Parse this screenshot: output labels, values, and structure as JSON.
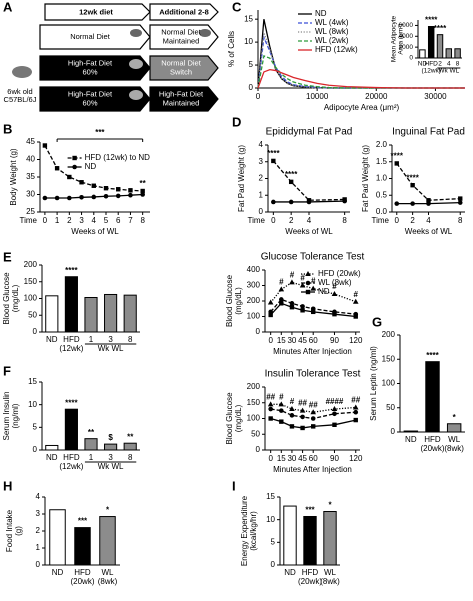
{
  "diagram": {
    "panel": "A",
    "headers": [
      "12wk diet",
      "Additional 2-8"
    ],
    "rows": [
      {
        "left": [
          "Normal Diet"
        ],
        "right": [
          "Normal Diet",
          "Maintained"
        ]
      },
      {
        "left": [
          "High-Fat Diet",
          "60%"
        ],
        "right": [
          "Normal Diet",
          "Switch"
        ]
      },
      {
        "left": [
          "High-Fat Diet",
          "60%"
        ],
        "right": [
          "High-Fat Diet",
          "Maintained"
        ]
      }
    ],
    "mouse_label": [
      "6wk old",
      "C57BL/6J"
    ]
  },
  "chart_data": [
    {
      "type": "line",
      "panel": "B",
      "ylabel": "Body Weight (g)",
      "xlabel": "Weeks of WL",
      "x_start_label": "Time",
      "x": [
        0,
        1,
        2,
        3,
        4,
        5,
        6,
        7,
        8
      ],
      "xlim": [
        -0.4,
        8.6
      ],
      "xticks": [
        0,
        1,
        2,
        3,
        4,
        5,
        6,
        7,
        8
      ],
      "ylim": [
        25,
        45
      ],
      "yticks": [
        25,
        30,
        35,
        40,
        45
      ],
      "legend": "upper-right",
      "bracket_label": "***",
      "series": [
        {
          "name": "HFD (12wk) to ND",
          "color": "#000000",
          "dash": "dashed",
          "marker": "square",
          "values": [
            44,
            37.5,
            35,
            33.5,
            32.5,
            31.8,
            31.5,
            31.2,
            31
          ],
          "significance": [
            null,
            null,
            null,
            null,
            null,
            null,
            null,
            null,
            "**"
          ]
        },
        {
          "name": "ND",
          "color": "#000000",
          "dash": "solid",
          "marker": "circle",
          "values": [
            29,
            29,
            29,
            29.2,
            29.3,
            29.5,
            29.6,
            29.8,
            30
          ]
        }
      ]
    },
    {
      "type": "line",
      "panel": "C",
      "ylabel": "% of Cells",
      "xlabel": "Adipocyte Area (μm²)",
      "x": [
        0,
        1000,
        2000,
        3000,
        4000,
        5000,
        6000,
        8000,
        10000,
        12000,
        15000,
        20000,
        25000,
        30000,
        35000
      ],
      "xlim": [
        0,
        35000
      ],
      "xticks": [
        0,
        10000,
        20000,
        30000
      ],
      "ylim": [
        0,
        17
      ],
      "yticks": [
        0,
        5,
        10,
        15
      ],
      "legend": "upper-left",
      "series": [
        {
          "name": "ND",
          "color": "#000000",
          "dash": "solid",
          "values": [
            0,
            15,
            9,
            4,
            2,
            1,
            0.5,
            0.2,
            0.1,
            0,
            0,
            0,
            0,
            0,
            0
          ]
        },
        {
          "name": "WL (4wk)",
          "color": "#3b4fd6",
          "dash": "dashed",
          "values": [
            0,
            11,
            8,
            4.5,
            2.5,
            1.3,
            0.7,
            0.3,
            0.1,
            0,
            0,
            0,
            0,
            0,
            0
          ]
        },
        {
          "name": "WL (8wk)",
          "color": "#888888",
          "dash": "dotted",
          "values": [
            0,
            12,
            8.5,
            4,
            2,
            1,
            0.5,
            0.2,
            0,
            0,
            0,
            0,
            0,
            0,
            0
          ]
        },
        {
          "name": "WL (2wk)",
          "color": "#2e9a3a",
          "dash": "dashed",
          "values": [
            0,
            7,
            6.5,
            4.5,
            3,
            2,
            1.3,
            0.6,
            0.3,
            0.1,
            0,
            0,
            0,
            0,
            0
          ]
        },
        {
          "name": "HFD (12wk)",
          "color": "#d9262b",
          "dash": "solid",
          "values": [
            0,
            3.5,
            4,
            3.8,
            3.3,
            2.8,
            2.3,
            1.6,
            1,
            0.6,
            0.3,
            0.1,
            0,
            0,
            0
          ]
        }
      ]
    },
    {
      "type": "bar",
      "ylabel": [
        "Mean Adipocyte",
        "Area (μm²)"
      ],
      "categories": [
        "ND",
        [
          "HFD",
          "(12wk)"
        ],
        "2",
        "4",
        "8"
      ],
      "group_label": "Wk WL",
      "values": [
        1500,
        5800,
        4300,
        1700,
        1700
      ],
      "colors": [
        "#ffffff",
        "#000000",
        "#8c8c8c",
        "#8c8c8c",
        "#8c8c8c"
      ],
      "ylim": [
        0,
        7000
      ],
      "yticks": [
        0,
        2000,
        4000,
        6000
      ],
      "significance": [
        null,
        "****",
        "****",
        null,
        null
      ]
    },
    {
      "type": "line",
      "panel": "D",
      "title": "Epididymal Fat Pad",
      "ylabel": "Fat Pad Weight (g)",
      "xlabel": "Weeks of WL",
      "x_start_label": "Time",
      "x": [
        0,
        2,
        4,
        8
      ],
      "xlim": [
        -0.6,
        8.6
      ],
      "xticks": [
        0,
        2,
        4,
        8
      ],
      "ylim": [
        0,
        4
      ],
      "yticks": [
        0,
        1,
        2,
        3,
        4
      ],
      "series": [
        {
          "color": "#000000",
          "dash": "dashed",
          "marker": "square",
          "values": [
            3.05,
            1.8,
            0.7,
            0.75
          ],
          "significance": [
            "****",
            "****",
            null,
            null
          ]
        },
        {
          "color": "#000000",
          "dash": "solid",
          "marker": "circle",
          "values": [
            0.6,
            0.6,
            0.6,
            0.65
          ]
        }
      ]
    },
    {
      "type": "line",
      "title": "Inguinal Fat Pad",
      "ylabel": "Fat Pad Weight (g)",
      "xlabel": "Weeks of WL",
      "x_start_label": "Time",
      "x": [
        0,
        2,
        4,
        8
      ],
      "xlim": [
        -0.6,
        8.6
      ],
      "xticks": [
        0,
        2,
        4,
        8
      ],
      "ylim": [
        0,
        2
      ],
      "yticks": [
        {
          "value": 0,
          "label": "0.0"
        },
        0.5,
        {
          "value": 1,
          "label": "1.0"
        },
        1.5,
        {
          "value": 2,
          "label": "2.0"
        }
      ],
      "series": [
        {
          "color": "#000000",
          "dash": "dashed",
          "marker": "square",
          "values": [
            1.45,
            0.8,
            0.35,
            0.4
          ],
          "significance": [
            "****",
            "****",
            null,
            null
          ]
        },
        {
          "color": "#000000",
          "dash": "solid",
          "marker": "circle",
          "values": [
            0.25,
            0.25,
            0.25,
            0.28
          ]
        }
      ]
    },
    {
      "type": "bar",
      "panel": "E",
      "ylabel": [
        "Blood Glucose",
        "(mg/dL)"
      ],
      "categories": [
        "ND",
        [
          "HFD",
          "(12wk)"
        ],
        "1",
        "3",
        "8"
      ],
      "group_label": "Wk WL",
      "values": [
        108,
        165,
        103,
        112,
        110
      ],
      "colors": [
        "#ffffff",
        "#000000",
        "#8c8c8c",
        "#8c8c8c",
        "#8c8c8c"
      ],
      "ylim": [
        0,
        200
      ],
      "yticks": [
        0,
        50,
        100,
        150,
        200
      ],
      "significance": [
        null,
        "****",
        null,
        null,
        null
      ]
    },
    {
      "type": "line",
      "title": "Glucose Tolerance Test",
      "ylabel": [
        "Blood Glucose",
        "(mg/dL)"
      ],
      "xlabel": "Minutes After Injection",
      "x": [
        0,
        15,
        30,
        45,
        60,
        90,
        120
      ],
      "xlim": [
        -8,
        126
      ],
      "xticks": [
        0,
        15,
        30,
        45,
        60,
        90,
        120
      ],
      "ylim": [
        0,
        400
      ],
      "yticks": [
        0,
        100,
        200,
        300,
        400
      ],
      "legend": "upper-right",
      "series": [
        {
          "name": "HFD (20wk)",
          "color": "#000000",
          "dash": "dotted",
          "marker": "triangle",
          "values": [
            190,
            275,
            320,
            300,
            280,
            245,
            195
          ],
          "significance": [
            null,
            "#",
            "#",
            "#",
            "#",
            "#",
            "#"
          ]
        },
        {
          "name": "WL (8wk)",
          "color": "#000000",
          "dash": "dashed",
          "marker": "circle",
          "values": [
            130,
            210,
            185,
            165,
            150,
            130,
            115
          ]
        },
        {
          "name": "ND",
          "color": "#000000",
          "dash": "solid",
          "marker": "square",
          "values": [
            110,
            185,
            160,
            140,
            130,
            115,
            100
          ]
        }
      ]
    },
    {
      "type": "bar",
      "panel": "F",
      "ylabel": [
        "Serum Insulin",
        "(ng/ml)"
      ],
      "categories": [
        "ND",
        [
          "HFD",
          "(12wk)"
        ],
        "1",
        "3",
        "8"
      ],
      "group_label": "Wk WL",
      "values": [
        1,
        9,
        2.5,
        1.3,
        1.5
      ],
      "colors": [
        "#ffffff",
        "#000000",
        "#8c8c8c",
        "#8c8c8c",
        "#8c8c8c"
      ],
      "ylim": [
        0,
        15
      ],
      "yticks": [
        0,
        5,
        10,
        15
      ],
      "significance": [
        null,
        "****",
        "**",
        "$",
        "**"
      ]
    },
    {
      "type": "line",
      "title": "Insulin Tolerance Test",
      "ylabel": [
        "Blood Glucose",
        "(mg/dL)"
      ],
      "xlabel": "Minutes After Injection",
      "x": [
        0,
        15,
        30,
        45,
        60,
        90,
        120
      ],
      "xlim": [
        -8,
        126
      ],
      "xticks": [
        0,
        15,
        30,
        45,
        60,
        90,
        120
      ],
      "ylim": [
        0,
        200
      ],
      "yticks": [
        0,
        50,
        100,
        150,
        200
      ],
      "series": [
        {
          "color": "#000000",
          "dash": "dotted",
          "marker": "triangle",
          "values": [
            145,
            145,
            130,
            125,
            120,
            130,
            135
          ],
          "significance": [
            "##",
            "#",
            "#",
            "##",
            "##",
            "####",
            "##"
          ]
        },
        {
          "color": "#000000",
          "dash": "dashed",
          "marker": "circle",
          "values": [
            130,
            125,
            110,
            105,
            100,
            115,
            120
          ]
        },
        {
          "color": "#000000",
          "dash": "solid",
          "marker": "square",
          "values": [
            100,
            90,
            75,
            70,
            75,
            80,
            95
          ]
        }
      ]
    },
    {
      "type": "bar",
      "panel": "G",
      "ylabel": "Serum Leptin (ng/ml)",
      "categories": [
        "ND",
        [
          "HFD",
          "(20wk)"
        ],
        [
          "WL",
          "(8wk)"
        ]
      ],
      "values": [
        2,
        145,
        17
      ],
      "colors": [
        "#ffffff",
        "#000000",
        "#8c8c8c"
      ],
      "ylim": [
        0,
        200
      ],
      "yticks": [
        0,
        50,
        100,
        150,
        200
      ],
      "significance": [
        null,
        "****",
        "*"
      ]
    },
    {
      "type": "bar",
      "panel": "H",
      "ylabel": [
        "Food Intake",
        "(g)"
      ],
      "categories": [
        "ND",
        [
          "HFD",
          "(20wk)"
        ],
        [
          "WL",
          "(8wk)"
        ]
      ],
      "values": [
        3.25,
        2.2,
        2.85
      ],
      "colors": [
        "#ffffff",
        "#000000",
        "#8c8c8c"
      ],
      "ylim": [
        0,
        4
      ],
      "yticks": [
        0,
        1,
        2,
        3,
        4
      ],
      "significance": [
        null,
        "***",
        "*"
      ]
    },
    {
      "type": "bar",
      "panel": "I",
      "ylabel": [
        "Energy Expenditure",
        "(kcal/kg/hr)"
      ],
      "categories": [
        "ND",
        [
          "HFD",
          "(20wk)"
        ],
        [
          "WL",
          "(8wk)"
        ]
      ],
      "values": [
        13,
        10.7,
        11.8
      ],
      "colors": [
        "#ffffff",
        "#000000",
        "#8c8c8c"
      ],
      "ylim": [
        0,
        15
      ],
      "yticks": [
        0,
        5,
        10,
        15
      ],
      "significance": [
        null,
        "***",
        "*"
      ]
    }
  ]
}
